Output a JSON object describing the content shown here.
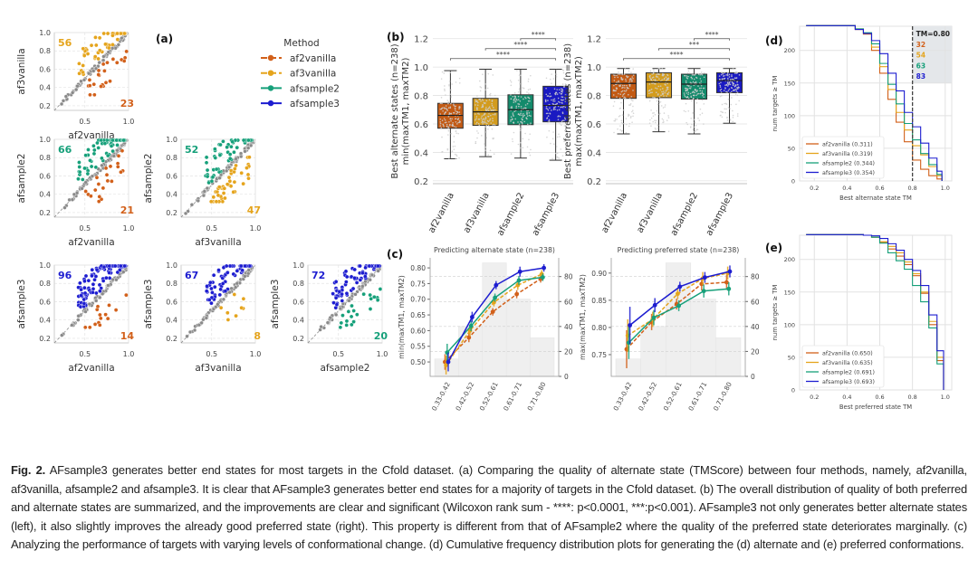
{
  "colors": {
    "af2vanilla": "#d2601a",
    "af3vanilla": "#e5a41c",
    "afsample2": "#16a07a",
    "afsample3": "#1d1dd0",
    "box_af2vanilla": "#c25a14",
    "box_af3vanilla": "#d39c1e",
    "box_afsample2": "#138a6b",
    "box_afsample3": "#1a1ac2",
    "diagonal": "#888888"
  },
  "methods": [
    "af2vanilla",
    "af3vanilla",
    "afsample2",
    "afsample3"
  ],
  "panel_labels": {
    "a": "(a)",
    "b": "(b)",
    "c": "(c)",
    "d": "(d)",
    "e": "(e)"
  },
  "legend": {
    "title": "Method",
    "items": [
      "af2vanilla",
      "af3vanilla",
      "afsample2",
      "afsample3"
    ],
    "styles": [
      "dashed",
      "dashed",
      "solid",
      "solid"
    ]
  },
  "caption": {
    "label": "Fig. 2.",
    "text": "AFsample3 generates better end states for most targets in the Cfold dataset. (a) Comparing the quality of alternate state (TMScore) between four methods, namely, af2vanilla, af3vanilla, afsample2 and afsample3. It is clear that AFsample3 generates better end states for a majority of targets in the Cfold dataset. (b) The overall distribution of quality of both preferred and alternate states are summarized, and the improvements are clear and significant (Wilcoxon rank sum - ****: p<0.0001, ***:p<0.001). AFsample3 not only generates better alternate states (left), it also slightly improves the already good preferred state (right). This property is different from that of AFsample2 where the quality of the preferred state deteriorates marginally.  (c) Analyzing the performance of targets with varying levels of conformational change.  (d) Cumulative frequency distribution plots for generating the (d) alternate and (e) preferred conformations."
  },
  "chart_data": [
    {
      "panel": "a",
      "type": "scatter",
      "xlim": [
        0.15,
        1.0
      ],
      "ylim": [
        0.15,
        1.0
      ],
      "xticks": [
        "0.5",
        "1.0"
      ],
      "yticks": [
        "0.2",
        "0.4",
        "0.6",
        "0.8",
        "1.0"
      ],
      "grid": true,
      "diagonal": "y=x dashed",
      "subplots": [
        {
          "xlabel": "af2vanilla",
          "ylabel": "af3vanilla",
          "above_count": 56,
          "below_count": 23
        },
        {
          "xlabel": "af2vanilla",
          "ylabel": "afsample2",
          "above_count": 66,
          "below_count": 21
        },
        {
          "xlabel": "af3vanilla",
          "ylabel": "afsample2",
          "above_count": 52,
          "below_count": 47
        },
        {
          "xlabel": "af2vanilla",
          "ylabel": "afsample3",
          "above_count": 96,
          "below_count": 14
        },
        {
          "xlabel": "af3vanilla",
          "ylabel": "afsample3",
          "above_count": 67,
          "below_count": 8
        },
        {
          "xlabel": "afsample2",
          "ylabel": "afsample3",
          "above_count": 72,
          "below_count": 20
        }
      ]
    },
    {
      "panel": "b-left",
      "type": "box",
      "ylabel": [
        "Best alternate states (n=238)",
        "min(maxTM1, maxTM2)"
      ],
      "ylim": [
        0.18,
        1.3
      ],
      "yticks": [
        "0.2",
        "0.4",
        "0.6",
        "0.8",
        "1.0",
        "1.2"
      ],
      "categories": [
        "af2vanilla",
        "af3vanilla",
        "afsample2",
        "afsample3"
      ],
      "boxes": [
        {
          "whislo": 0.355,
          "q1": 0.57,
          "med": 0.66,
          "q3": 0.745,
          "whishi": 0.975
        },
        {
          "whislo": 0.37,
          "q1": 0.59,
          "med": 0.685,
          "q3": 0.78,
          "whishi": 0.985
        },
        {
          "whislo": 0.36,
          "q1": 0.595,
          "med": 0.7,
          "q3": 0.805,
          "whishi": 0.985
        },
        {
          "whislo": 0.345,
          "q1": 0.615,
          "med": 0.73,
          "q3": 0.865,
          "whishi": 0.985
        }
      ],
      "significance": [
        {
          "from": "afsample2",
          "to": "afsample3",
          "label": "****"
        },
        {
          "from": "af3vanilla",
          "to": "afsample3",
          "label": "****"
        },
        {
          "from": "af2vanilla",
          "to": "afsample3",
          "label": "****"
        }
      ]
    },
    {
      "panel": "b-right",
      "type": "box",
      "ylabel": [
        "Best preferred states (n=238)",
        "max(maxTM1, maxTM2)"
      ],
      "ylim": [
        0.18,
        1.3
      ],
      "yticks": [
        "0.2",
        "0.4",
        "0.6",
        "0.8",
        "1.0",
        "1.2"
      ],
      "categories": [
        "af2vanilla",
        "af3vanilla",
        "afsample2",
        "afsample3"
      ],
      "boxes": [
        {
          "whislo": 0.53,
          "q1": 0.78,
          "med": 0.885,
          "q3": 0.95,
          "whishi": 0.99
        },
        {
          "whislo": 0.545,
          "q1": 0.785,
          "med": 0.895,
          "q3": 0.96,
          "whishi": 0.99
        },
        {
          "whislo": 0.53,
          "q1": 0.775,
          "med": 0.88,
          "q3": 0.95,
          "whishi": 0.99
        },
        {
          "whislo": 0.605,
          "q1": 0.82,
          "med": 0.905,
          "q3": 0.96,
          "whishi": 0.99
        }
      ],
      "significance": [
        {
          "from": "afsample2",
          "to": "afsample3",
          "label": "****"
        },
        {
          "from": "af3vanilla",
          "to": "afsample3",
          "label": "***"
        },
        {
          "from": "af2vanilla",
          "to": "afsample3",
          "label": "****"
        }
      ]
    },
    {
      "panel": "c-left",
      "type": "line",
      "title": "Predicting alternate state (n=238)",
      "ylabel": "min(maxTM1, maxTM2)",
      "ylim": [
        0.454,
        0.832
      ],
      "yticks": [
        "0.50",
        "0.55",
        "0.60",
        "0.65",
        "0.70",
        "0.75",
        "0.80"
      ],
      "y2lim": [
        0,
        95
      ],
      "y2ticks": [
        "0",
        "20",
        "40",
        "60",
        "80"
      ],
      "categories": [
        "0.33-0.42",
        "0.42-0.52",
        "0.52-0.61",
        "0.61-0.71",
        "0.71-0.80"
      ],
      "bar_counts": [
        14,
        40,
        91,
        62,
        31
      ],
      "series": [
        {
          "name": "af2vanilla",
          "values": [
            0.5,
            0.578,
            0.66,
            0.716,
            0.765
          ],
          "err": [
            0.025,
            0.015,
            0.012,
            0.013,
            0.012
          ]
        },
        {
          "name": "af3vanilla",
          "values": [
            0.49,
            0.6,
            0.69,
            0.745,
            0.78
          ],
          "err": [
            0.03,
            0.018,
            0.013,
            0.015,
            0.013
          ]
        },
        {
          "name": "afsample2",
          "values": [
            0.53,
            0.615,
            0.705,
            0.76,
            0.77
          ],
          "err": [
            0.028,
            0.017,
            0.013,
            0.014,
            0.012
          ]
        },
        {
          "name": "afsample3",
          "values": [
            0.5,
            0.643,
            0.745,
            0.788,
            0.8
          ],
          "err": [
            0.03,
            0.017,
            0.013,
            0.016,
            0.012
          ]
        }
      ]
    },
    {
      "panel": "c-right",
      "type": "line",
      "title": "Predicting preferred state (n=238)",
      "ylabel": "max(maxTM1, maxTM2)",
      "ylim": [
        0.71,
        0.928
      ],
      "yticks": [
        "0.75",
        "0.80",
        "0.85",
        "0.90"
      ],
      "y2lim": [
        0,
        95
      ],
      "y2ticks": [
        "0",
        "20",
        "40",
        "60",
        "80"
      ],
      "categories": [
        "0.33-0.42",
        "0.42-0.52",
        "0.52-0.61",
        "0.61-0.71",
        "0.71-0.80"
      ],
      "bar_counts": [
        14,
        40,
        91,
        62,
        31
      ],
      "series": [
        {
          "name": "af2vanilla",
          "values": [
            0.76,
            0.81,
            0.843,
            0.88,
            0.883
          ],
          "err": [
            0.035,
            0.015,
            0.01,
            0.012,
            0.014
          ]
        },
        {
          "name": "af3vanilla",
          "values": [
            0.785,
            0.815,
            0.862,
            0.89,
            0.9
          ],
          "err": [
            0.03,
            0.014,
            0.01,
            0.012,
            0.012
          ]
        },
        {
          "name": "afsample2",
          "values": [
            0.772,
            0.818,
            0.84,
            0.867,
            0.871
          ],
          "err": [
            0.03,
            0.014,
            0.01,
            0.012,
            0.012
          ]
        },
        {
          "name": "afsample3",
          "values": [
            0.804,
            0.841,
            0.875,
            0.892,
            0.903
          ],
          "err": [
            0.034,
            0.013,
            0.009,
            0.01,
            0.011
          ]
        }
      ]
    },
    {
      "panel": "d",
      "type": "line",
      "xlabel": "Best alternate state TM",
      "ylabel": "num targets ≥ TM",
      "xlim": [
        0.11,
        1.04
      ],
      "ylim": [
        0,
        237
      ],
      "xticks": [
        "0.2",
        "0.4",
        "0.6",
        "0.8",
        "1.0"
      ],
      "yticks": [
        "0",
        "50",
        "100",
        "150",
        "200"
      ],
      "threshold": {
        "x": 0.8,
        "label": "TM=0.80",
        "counts": [
          "32",
          "54",
          "63",
          "83"
        ]
      },
      "legend_position": "lower-left",
      "series": [
        {
          "name": "af2vanilla (0.311)",
          "x": [
            0.15,
            0.45,
            0.5,
            0.55,
            0.6,
            0.65,
            0.7,
            0.75,
            0.8,
            0.85,
            0.9,
            0.95,
            0.98
          ],
          "y": [
            238,
            232,
            225,
            200,
            165,
            125,
            90,
            60,
            32,
            18,
            8,
            3,
            0
          ]
        },
        {
          "name": "af3vanilla (0.319)",
          "x": [
            0.15,
            0.45,
            0.5,
            0.55,
            0.6,
            0.65,
            0.7,
            0.75,
            0.8,
            0.85,
            0.9,
            0.95,
            0.98
          ],
          "y": [
            238,
            233,
            226,
            205,
            175,
            140,
            105,
            78,
            54,
            40,
            22,
            8,
            0
          ]
        },
        {
          "name": "afsample2 (0.344)",
          "x": [
            0.15,
            0.45,
            0.5,
            0.55,
            0.6,
            0.65,
            0.7,
            0.75,
            0.8,
            0.85,
            0.9,
            0.95,
            0.98
          ],
          "y": [
            238,
            233,
            227,
            210,
            180,
            148,
            118,
            88,
            63,
            42,
            25,
            10,
            0
          ]
        },
        {
          "name": "afsample3 (0.354)",
          "x": [
            0.15,
            0.45,
            0.5,
            0.55,
            0.6,
            0.65,
            0.7,
            0.75,
            0.8,
            0.85,
            0.9,
            0.95,
            0.98
          ],
          "y": [
            238,
            232,
            226,
            215,
            195,
            165,
            138,
            105,
            83,
            58,
            35,
            15,
            0
          ]
        }
      ]
    },
    {
      "panel": "e",
      "type": "line",
      "xlabel": "Best preferred state TM",
      "ylabel": "num targets ≥ TM",
      "xlim": [
        0.11,
        1.04
      ],
      "ylim": [
        0,
        237
      ],
      "xticks": [
        "0.2",
        "0.4",
        "0.6",
        "0.8",
        "1.0"
      ],
      "yticks": [
        "0",
        "50",
        "100",
        "150",
        "200"
      ],
      "legend_position": "lower-left",
      "series": [
        {
          "name": "af2vanilla (0.650)",
          "x": [
            0.15,
            0.5,
            0.55,
            0.6,
            0.65,
            0.7,
            0.75,
            0.8,
            0.85,
            0.9,
            0.95,
            0.99
          ],
          "y": [
            238,
            237,
            234,
            226,
            216,
            205,
            192,
            175,
            148,
            100,
            45,
            0
          ]
        },
        {
          "name": "af3vanilla (0.635)",
          "x": [
            0.15,
            0.5,
            0.55,
            0.6,
            0.65,
            0.7,
            0.75,
            0.8,
            0.85,
            0.9,
            0.95,
            0.99
          ],
          "y": [
            238,
            237,
            234,
            227,
            220,
            210,
            196,
            178,
            150,
            105,
            50,
            0
          ]
        },
        {
          "name": "afsample2 (0.691)",
          "x": [
            0.15,
            0.5,
            0.55,
            0.6,
            0.65,
            0.7,
            0.75,
            0.8,
            0.85,
            0.9,
            0.95,
            0.99
          ],
          "y": [
            238,
            237,
            234,
            225,
            210,
            198,
            185,
            160,
            135,
            95,
            40,
            0
          ]
        },
        {
          "name": "afsample3 (0.693)",
          "x": [
            0.15,
            0.5,
            0.55,
            0.6,
            0.65,
            0.7,
            0.75,
            0.8,
            0.85,
            0.9,
            0.95,
            0.99
          ],
          "y": [
            238,
            237,
            236,
            232,
            224,
            214,
            200,
            183,
            160,
            115,
            60,
            0
          ]
        }
      ]
    }
  ]
}
